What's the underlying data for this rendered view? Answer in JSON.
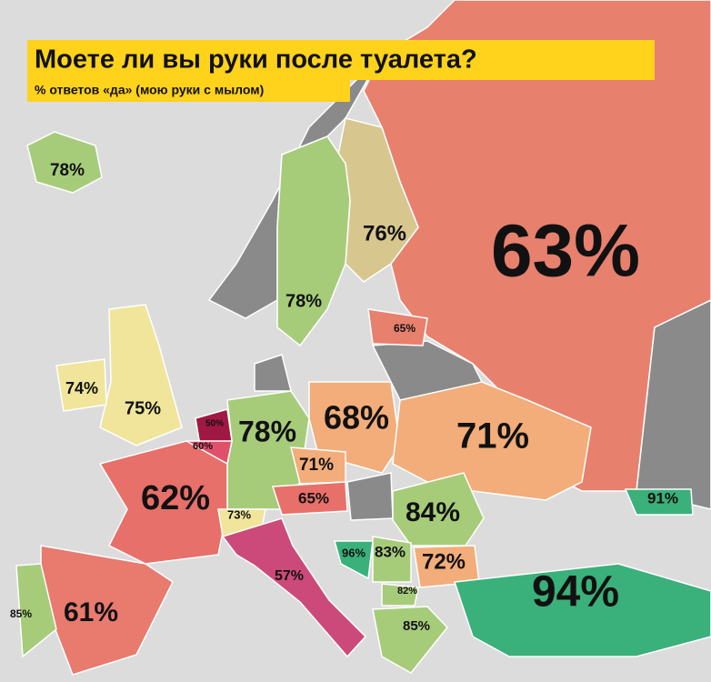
{
  "header": {
    "title": "Моете ли вы руки после туалета?",
    "subtitle": "% ответов «да» (мою руки с мылом)"
  },
  "labels": [
    "78%",
    "76%",
    "63%",
    "78%",
    "65%",
    "74%",
    "75%",
    "50%",
    "60%",
    "78%",
    "68%",
    "71%",
    "71%",
    "62%",
    "65%",
    "73%",
    "91%",
    "84%",
    "57%",
    "96%",
    "83%",
    "72%",
    "82%",
    "94%",
    "85%",
    "61%",
    "85%"
  ]
}
